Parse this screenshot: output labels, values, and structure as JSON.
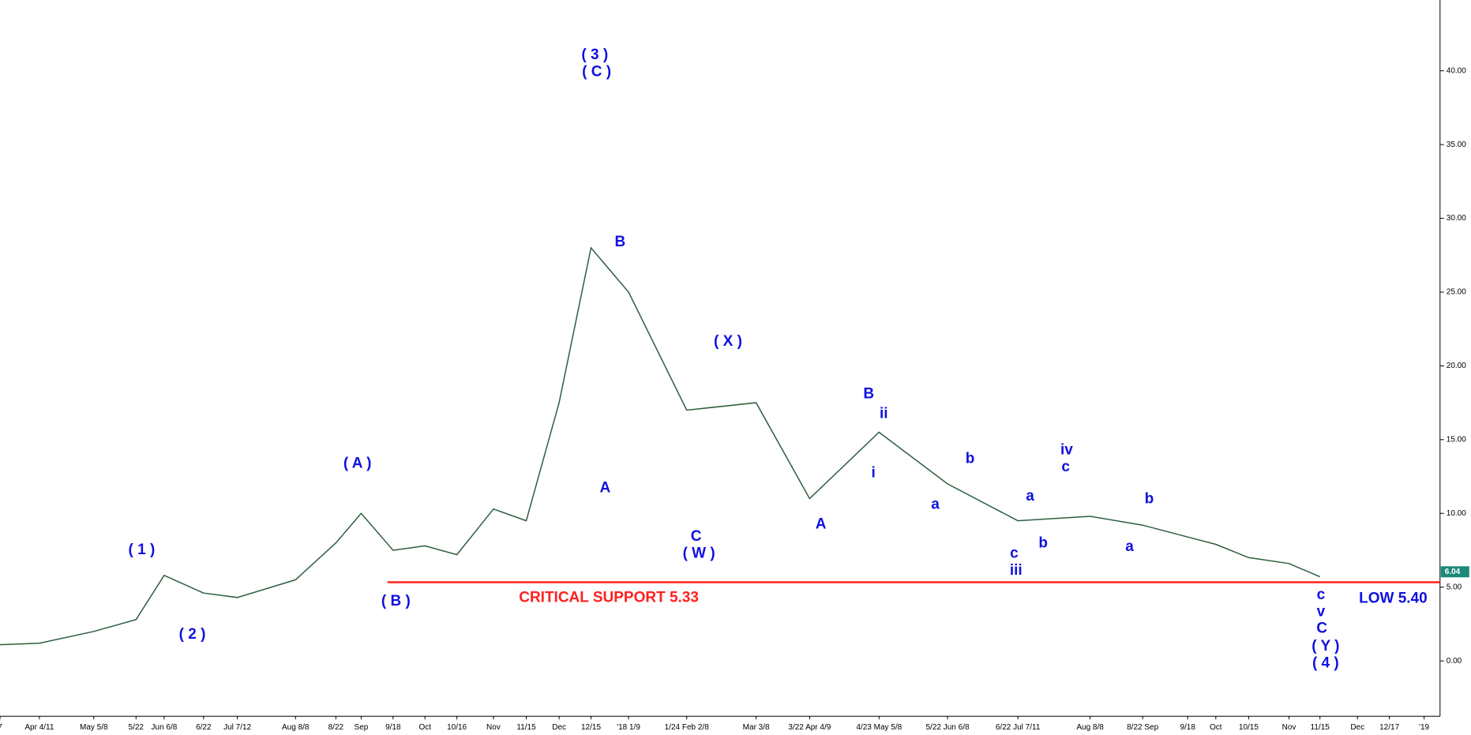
{
  "chart_data": {
    "type": "line",
    "categories": [
      "7",
      "Apr 4/11",
      "May 5/8",
      "5/22",
      "Jun 6/8",
      "6/22",
      "Jul 7/12",
      "Aug 8/8",
      "8/22",
      "Sep",
      "9/18",
      "Oct",
      "10/16",
      "Nov",
      "11/15",
      "Dec",
      "12/15",
      "'18 1/9",
      "1/24 Feb 2/8",
      "Mar 3/8",
      "3/22 Apr 4/9",
      "4/23 May 5/8",
      "5/22 Jun 6/8",
      "6/22 Jul 7/11",
      "Aug 8/8",
      "8/22 Sep",
      "9/18",
      "Oct",
      "10/15",
      "Nov",
      "11/15",
      "Dec",
      "12/17",
      "'19"
    ],
    "series": [
      {
        "name": "Price",
        "color": "#2e5e3e",
        "values": [
          1.1,
          1.2,
          2.0,
          2.8,
          5.8,
          4.6,
          4.3,
          5.5,
          8.0,
          10.0,
          7.5,
          7.8,
          7.2,
          10.3,
          9.5,
          17.5,
          28,
          25,
          17,
          17.5,
          11,
          15.5,
          12,
          9.5,
          9.8,
          9.2,
          8.4,
          7.9,
          7.0,
          6.6,
          5.7,
          null,
          null,
          null
        ]
      }
    ],
    "ylim": [
      -3.75,
      44.8
    ],
    "yticks": [
      {
        "value": 0,
        "label": "0.00"
      },
      {
        "value": 5,
        "label": "5.00"
      },
      {
        "value": 10,
        "label": "10.00"
      },
      {
        "value": 15,
        "label": "15.00"
      },
      {
        "value": 20,
        "label": "20.00"
      },
      {
        "value": 25,
        "label": "25.00"
      },
      {
        "value": 30,
        "label": "30.00"
      },
      {
        "value": 35,
        "label": "35.00"
      },
      {
        "value": 40,
        "label": "40.00"
      }
    ],
    "support": 5.33,
    "support_color": "#ff2020",
    "last_price": {
      "value": 6.04,
      "label": "6.04"
    },
    "annotations": [
      "( 3 )",
      "( C )",
      "B",
      "A",
      "( A )",
      "( 1 )",
      "( 2 )",
      "( B )",
      "( X )",
      "C",
      "( W )",
      "A",
      "B",
      "ii",
      "i",
      "a",
      "b",
      "a",
      "b",
      "c",
      "iii",
      "iv",
      "c",
      "b",
      "a",
      "c",
      "v",
      "C",
      "( Y )",
      "( 4 )",
      "LOW 5.40",
      "CRITICAL SUPPORT 5.33"
    ]
  }
}
